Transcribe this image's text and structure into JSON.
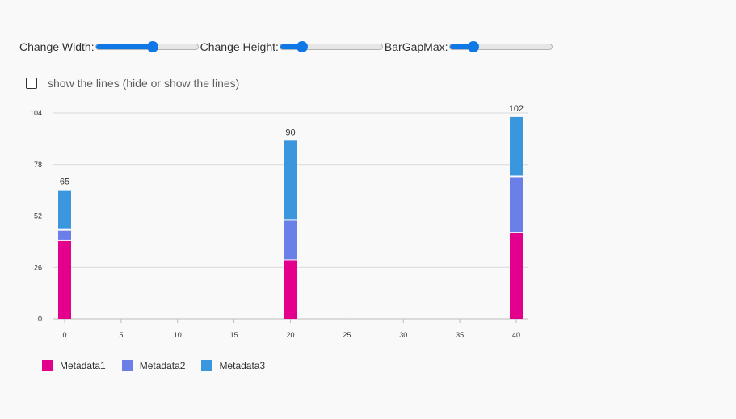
{
  "controls": {
    "width_slider": {
      "label": "Change Width:",
      "value_fraction": 0.56
    },
    "height_slider": {
      "label": "Change Height:",
      "value_fraction": 0.22
    },
    "bargap_slider": {
      "label": "BarGapMax:",
      "value_fraction": 0.24
    }
  },
  "show_lines": {
    "label": "show the lines (hide or show the lines)",
    "checked": false
  },
  "colors": {
    "Metadata1": "#e3008c",
    "Metadata2": "#6b7fe8",
    "Metadata3": "#3a96dd",
    "accent": "#0f78e6",
    "gridline": "#d9d9d9"
  },
  "chart_data": {
    "type": "bar",
    "stacked": true,
    "x": [
      0,
      20,
      40
    ],
    "series": [
      {
        "name": "Metadata1",
        "values": [
          40,
          30,
          44
        ]
      },
      {
        "name": "Metadata2",
        "values": [
          5,
          20,
          28
        ]
      },
      {
        "name": "Metadata3",
        "values": [
          20,
          40,
          30
        ]
      }
    ],
    "totals": [
      "65",
      "90",
      "102"
    ],
    "xlim": [
      0,
      40
    ],
    "ylim": [
      0,
      104
    ],
    "x_ticks": [
      "0",
      "5",
      "10",
      "15",
      "20",
      "25",
      "30",
      "35",
      "40"
    ],
    "y_ticks": [
      "0",
      "26",
      "52",
      "78",
      "104"
    ],
    "grid": true,
    "legend_position": "bottom-left"
  }
}
